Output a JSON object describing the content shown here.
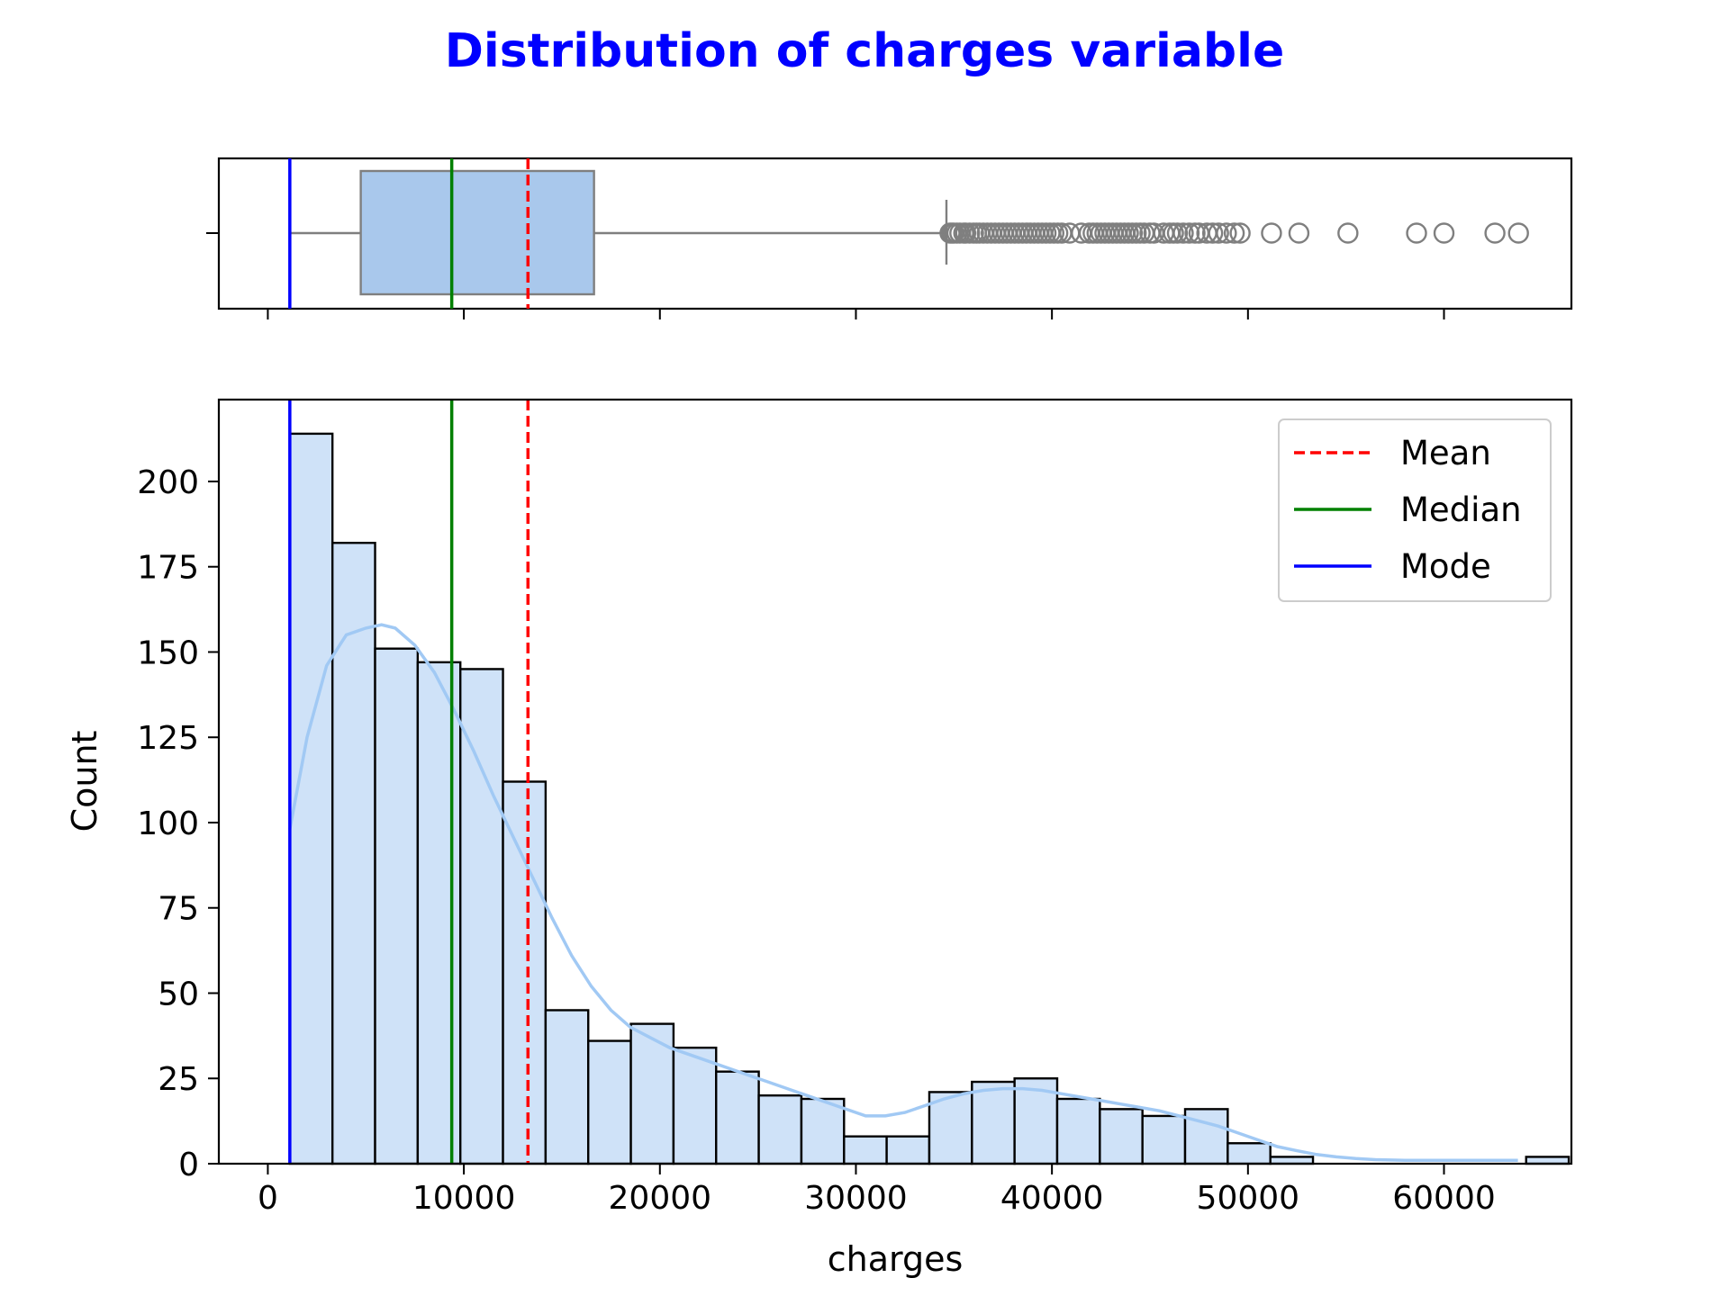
{
  "chart_data": {
    "type": "bar",
    "title": "Distribution of charges variable",
    "title_color": "#0000ff",
    "xlabel": "charges",
    "ylabel": "Count",
    "xlim": [
      -2500,
      66500
    ],
    "ylim": [
      0,
      224
    ],
    "x_ticks": [
      0,
      10000,
      20000,
      30000,
      40000,
      50000,
      60000
    ],
    "y_ticks": [
      0,
      25,
      50,
      75,
      100,
      125,
      150,
      175,
      200
    ],
    "histogram": {
      "bin_start": 1121.87,
      "bin_width": 2174.8,
      "counts": [
        214,
        182,
        151,
        147,
        145,
        112,
        45,
        36,
        41,
        34,
        27,
        20,
        19,
        8,
        8,
        21,
        24,
        25,
        19,
        16,
        14,
        16,
        6,
        2,
        0,
        0,
        0,
        0,
        0,
        2
      ],
      "fill": "#cfe2f8",
      "edge": "#000000"
    },
    "kde": {
      "color": "#a1c9f4",
      "x": [
        1121.87,
        2000,
        3000,
        4000,
        5000,
        5800,
        6500,
        7500,
        8500,
        9500,
        10500,
        11500,
        12500,
        13500,
        14500,
        15500,
        16500,
        17500,
        18500,
        19500,
        20500,
        21500,
        22500,
        23500,
        24500,
        25500,
        26500,
        27500,
        28500,
        29500,
        30500,
        31500,
        32500,
        33500,
        34500,
        35500,
        36500,
        37500,
        38500,
        39500,
        40500,
        41500,
        42500,
        43500,
        44500,
        45500,
        46500,
        47500,
        48500,
        49500,
        50500,
        51500,
        52500,
        53500,
        54500,
        55500,
        56500,
        58000,
        60000,
        62000,
        63770
      ],
      "y": [
        98,
        125,
        146,
        155,
        157,
        158,
        157,
        152,
        144,
        133,
        121,
        108,
        96,
        84,
        72,
        61,
        52,
        45,
        40,
        37,
        34,
        32,
        30,
        28,
        26,
        24,
        22,
        20,
        18,
        16,
        14,
        14,
        15,
        17,
        19,
        20.5,
        21.5,
        22,
        22,
        21.5,
        20.5,
        19.5,
        18.5,
        17.5,
        16.5,
        15.5,
        14,
        12.5,
        11,
        9,
        7,
        5,
        3.8,
        2.7,
        2,
        1.5,
        1.2,
        1,
        1,
        1,
        1
      ]
    },
    "reference_lines": [
      {
        "name": "Mean",
        "value": 13270.42,
        "color": "#ff0000",
        "style": "dashed"
      },
      {
        "name": "Median",
        "value": 9382.03,
        "color": "#008000",
        "style": "solid"
      },
      {
        "name": "Mode",
        "value": 1121.87,
        "color": "#0000ff",
        "style": "solid"
      }
    ],
    "boxplot": {
      "min": 1121.87,
      "q1": 4740.29,
      "median": 9382.03,
      "q3": 16639.91,
      "whisker_high": 34617.84,
      "box_fill": "#a9c8ec",
      "line_color": "#7f7f7f",
      "outliers": [
        34800,
        34900,
        35000,
        35150,
        35300,
        35500,
        35600,
        35800,
        36000,
        36150,
        36300,
        36500,
        36700,
        36900,
        37100,
        37300,
        37500,
        37700,
        37900,
        38100,
        38300,
        38500,
        38700,
        38900,
        39100,
        39300,
        39500,
        39700,
        39900,
        40100,
        40300,
        40500,
        40900,
        41500,
        41900,
        42100,
        42300,
        42500,
        42700,
        42900,
        43100,
        43300,
        43500,
        43700,
        43900,
        44100,
        44300,
        44500,
        44700,
        45000,
        45200,
        45700,
        46000,
        46200,
        46400,
        46700,
        47000,
        47300,
        47500,
        47900,
        48200,
        48500,
        48900,
        49300,
        49600,
        51200,
        52600,
        55100,
        58600,
        60000,
        62600,
        63800
      ]
    },
    "legend": {
      "position": "top-right",
      "entries": [
        {
          "label": "Mean",
          "color": "#ff0000",
          "style": "dashed"
        },
        {
          "label": "Median",
          "color": "#008000",
          "style": "solid"
        },
        {
          "label": "Mode",
          "color": "#0000ff",
          "style": "solid"
        }
      ]
    },
    "grid": false
  }
}
